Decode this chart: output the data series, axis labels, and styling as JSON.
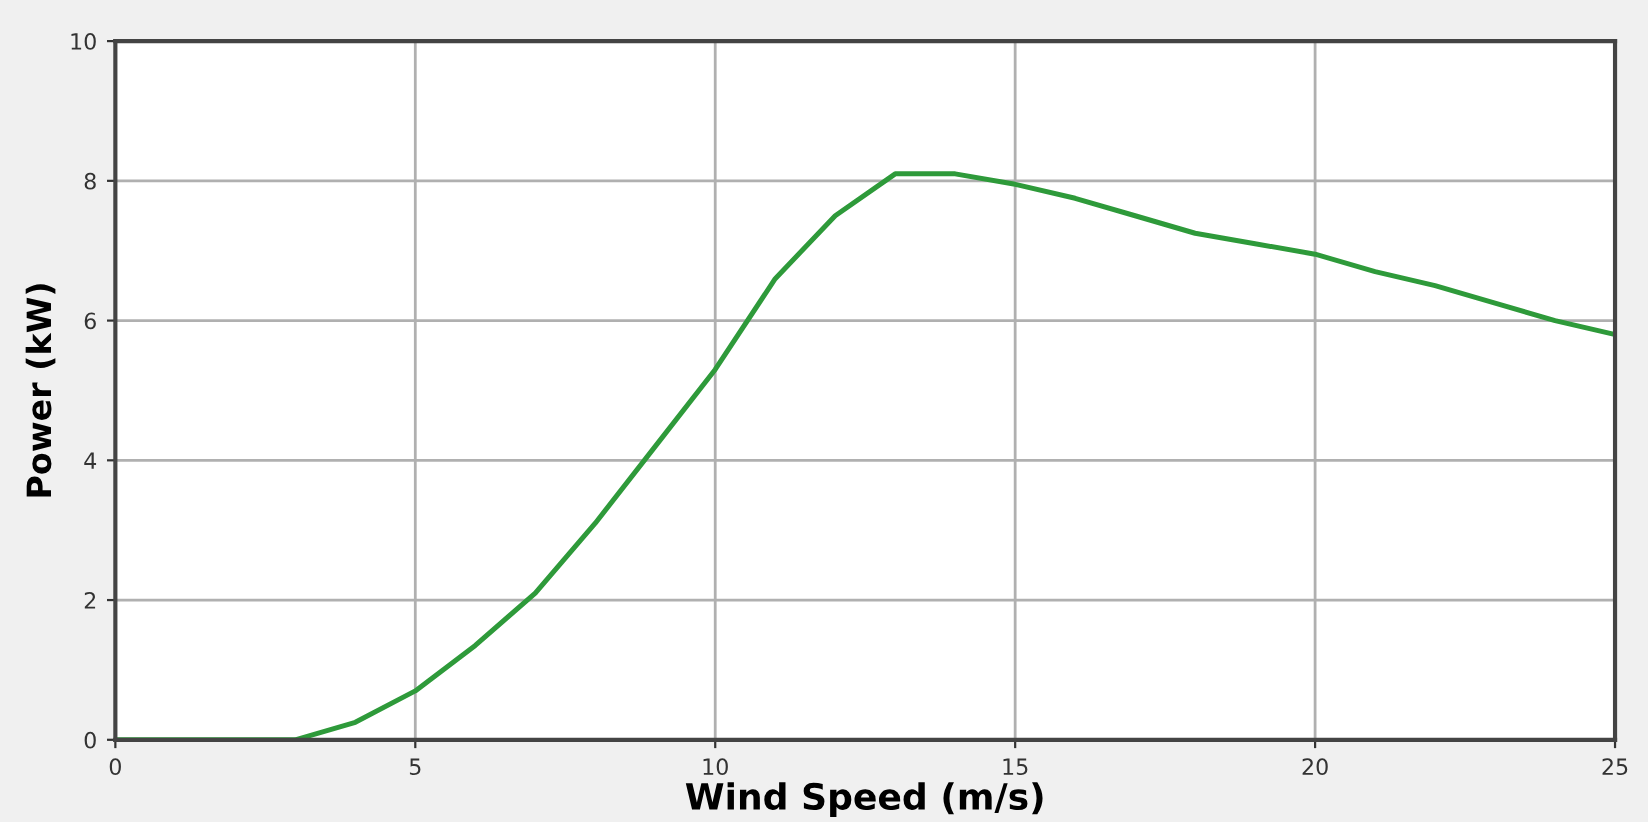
{
  "chart_data": {
    "type": "line",
    "xlabel": "Wind Speed (m/s)",
    "ylabel": "Power (kW)",
    "x": [
      0,
      3,
      4,
      5,
      6,
      7,
      8,
      9,
      10,
      11,
      12,
      13,
      14,
      15,
      16,
      17,
      18,
      19,
      20,
      21,
      22,
      23,
      24,
      25
    ],
    "series": [
      {
        "color": "#2e9a3a",
        "values": [
          0,
          0,
          0.25,
          0.7,
          1.35,
          2.1,
          3.1,
          4.2,
          5.3,
          6.6,
          7.5,
          8.1,
          8.1,
          7.95,
          7.75,
          7.5,
          7.25,
          7.1,
          6.95,
          6.7,
          6.5,
          6.25,
          6.0,
          5.8
        ]
      }
    ],
    "xlim": [
      0,
      25
    ],
    "xticks": [
      0,
      5,
      10,
      15,
      20,
      25
    ],
    "ylim": [
      0,
      10
    ],
    "yticks": [
      0,
      2,
      4,
      6,
      8,
      10
    ],
    "grid": true,
    "marker": "none",
    "line_style": "solid"
  }
}
